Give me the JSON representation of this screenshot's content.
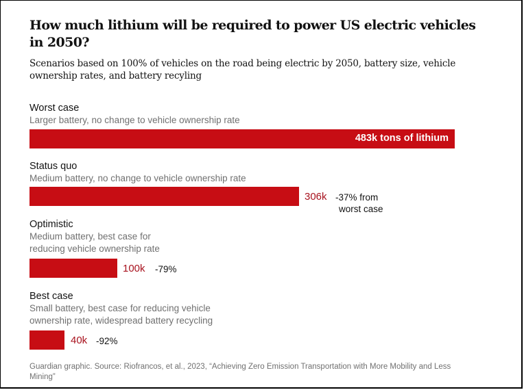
{
  "title": "How much lithium will be required to power US electric vehicles in 2050?",
  "subtitle": "Scenarios based on 100% of vehicles on the road being electric by 2050, battery size, vehicle ownership rates, and battery recyling",
  "footer": "Guardian graphic. Source: Riofrancos, et al., 2023, “Achieving Zero Emission Transportation with More Mobility and Less Mining”",
  "colors": {
    "bar": "#c70d14",
    "value_label": "#a8121e",
    "text": "#121212",
    "muted": "#707070"
  },
  "chart_data": {
    "type": "bar",
    "orientation": "horizontal",
    "title": "How much lithium will be required to power US electric vehicles in 2050?",
    "subtitle": "Scenarios based on 100% of vehicles on the road being electric by 2050, battery size, vehicle ownership rates, and battery recyling",
    "xlabel": "",
    "ylabel": "",
    "units": "thousand tons of lithium",
    "xlim": [
      0,
      483
    ],
    "grid": false,
    "legend": "none",
    "categories": [
      "Worst case",
      "Status quo",
      "Optimistic",
      "Best case"
    ],
    "values": [
      483,
      306,
      100,
      40
    ],
    "bars": [
      {
        "label": "Worst case",
        "description": "Larger battery, no change to vehicle ownership rate",
        "value": 483,
        "value_label": "483k tons of lithium",
        "label_inside": true,
        "change_label": ""
      },
      {
        "label": "Status quo",
        "description": "Medium battery, no change to vehicle ownership rate",
        "value": 306,
        "value_label": "306k",
        "label_inside": false,
        "change_label": "-37% from",
        "change_label_2": "worst case"
      },
      {
        "label": "Optimistic",
        "description": "Medium battery, best case for",
        "description_2": "reducing vehicle ownership rate",
        "value": 100,
        "value_label": "100k",
        "label_inside": false,
        "change_label": "-79%"
      },
      {
        "label": "Best case",
        "description": "Small battery, best case for reducing vehicle",
        "description_2": "ownership rate, widespread battery recycling",
        "value": 40,
        "value_label": "40k",
        "label_inside": false,
        "change_label": "-92%"
      }
    ],
    "source": "Guardian graphic. Source: Riofrancos, et al., 2023, “Achieving Zero Emission Transportation with More Mobility and Less Mining”"
  }
}
